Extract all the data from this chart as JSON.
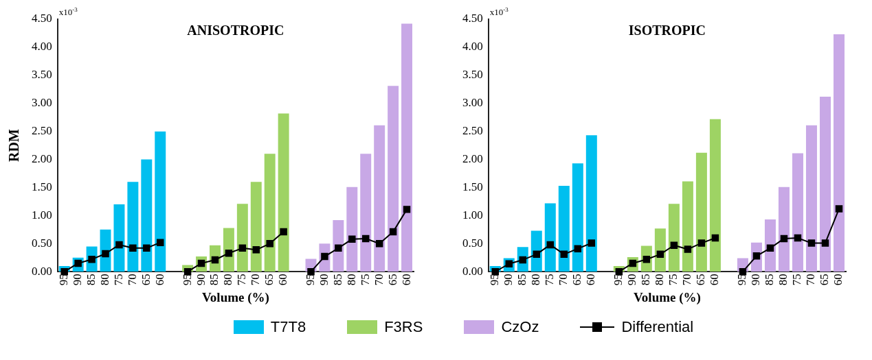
{
  "chart_data": [
    {
      "type": "bar",
      "title": "ANISOTROPIC",
      "xlabel": "Volume (%)",
      "ylabel": "RDM",
      "annotations": [
        "x10$^{-3}$"
      ],
      "categories": [
        "95",
        "90",
        "85",
        "80",
        "75",
        "70",
        "65",
        "60",
        null,
        "95",
        "90",
        "85",
        "80",
        "75",
        "70",
        "65",
        "60",
        null,
        "95",
        "90",
        "85",
        "80",
        "75",
        "70",
        "65",
        "60"
      ],
      "series": [
        {
          "name": "T7T8",
          "color": "#00bfef",
          "values": [
            0.1,
            0.25,
            0.45,
            0.75,
            1.2,
            1.6,
            2.0,
            2.5,
            null,
            null,
            null,
            null,
            null,
            null,
            null,
            null,
            null,
            null,
            null,
            null,
            null,
            null,
            null,
            null,
            null,
            null
          ]
        },
        {
          "name": "F3RS",
          "color": "#9ed364",
          "values": [
            null,
            null,
            null,
            null,
            null,
            null,
            null,
            null,
            null,
            0.12,
            0.27,
            0.47,
            0.78,
            1.21,
            1.6,
            2.1,
            2.82,
            null,
            null,
            null,
            null,
            null,
            null,
            null,
            null,
            null
          ]
        },
        {
          "name": "CzOz",
          "color": "#c8a8e6",
          "values": [
            null,
            null,
            null,
            null,
            null,
            null,
            null,
            null,
            null,
            null,
            null,
            null,
            null,
            null,
            null,
            null,
            null,
            null,
            0.23,
            0.5,
            0.92,
            1.51,
            2.1,
            2.61,
            3.31,
            4.42
          ]
        },
        {
          "name": "Differential",
          "type": "line",
          "color": "#000000",
          "values": [
            0.0,
            0.15,
            0.22,
            0.32,
            0.48,
            0.42,
            0.42,
            0.52,
            null,
            0.0,
            0.15,
            0.21,
            0.33,
            0.42,
            0.39,
            0.5,
            0.71,
            null,
            0.0,
            0.27,
            0.42,
            0.58,
            0.59,
            0.5,
            0.71,
            1.11
          ]
        }
      ],
      "ylim": [
        0,
        4.5
      ],
      "yticks": [
        {
          "value": 0,
          "label": "0.00"
        },
        {
          "value": 0.5,
          "label": "0.50"
        },
        {
          "value": 1,
          "label": "1.00"
        },
        {
          "value": 1.5,
          "label": "1.50"
        },
        {
          "value": 2,
          "label": "2.00"
        },
        {
          "value": 2.5,
          "label": "2.50"
        },
        {
          "value": 3,
          "label": "3.00"
        },
        {
          "value": 3.5,
          "label": "3.50"
        },
        {
          "value": 4,
          "label": "4.00"
        },
        {
          "value": 4.5,
          "label": "4.50"
        }
      ],
      "marker": "square",
      "legend": "bottom"
    },
    {
      "type": "bar",
      "title": "ISOTROPIC",
      "xlabel": "Volume (%)",
      "annotations": [
        "x10$^{-3}$"
      ],
      "categories": [
        "95",
        "90",
        "85",
        "80",
        "75",
        "70",
        "65",
        "60",
        null,
        "95",
        "90",
        "85",
        "80",
        "75",
        "70",
        "65",
        "60",
        null,
        "95",
        "90",
        "85",
        "80",
        "75",
        "70",
        "65",
        "60"
      ],
      "series": [
        {
          "name": "T7T8",
          "color": "#00bfef",
          "values": [
            0.1,
            0.24,
            0.44,
            0.73,
            1.22,
            1.53,
            1.93,
            2.43,
            null,
            null,
            null,
            null,
            null,
            null,
            null,
            null,
            null,
            null,
            null,
            null,
            null,
            null,
            null,
            null,
            null,
            null
          ]
        },
        {
          "name": "F3RS",
          "color": "#9ed364",
          "values": [
            null,
            null,
            null,
            null,
            null,
            null,
            null,
            null,
            null,
            0.1,
            0.26,
            0.46,
            0.77,
            1.21,
            1.61,
            2.12,
            2.72,
            null,
            null,
            null,
            null,
            null,
            null,
            null,
            null,
            null
          ]
        },
        {
          "name": "CzOz",
          "color": "#c8a8e6",
          "values": [
            null,
            null,
            null,
            null,
            null,
            null,
            null,
            null,
            null,
            null,
            null,
            null,
            null,
            null,
            null,
            null,
            null,
            null,
            0.24,
            0.52,
            0.93,
            1.51,
            2.11,
            2.61,
            3.12,
            4.23
          ]
        },
        {
          "name": "Differential",
          "type": "line",
          "color": "#000000",
          "values": [
            0.0,
            0.14,
            0.21,
            0.31,
            0.48,
            0.31,
            0.41,
            0.51,
            null,
            0.0,
            0.15,
            0.22,
            0.31,
            0.47,
            0.4,
            0.51,
            0.6,
            null,
            0.0,
            0.28,
            0.42,
            0.59,
            0.6,
            0.51,
            0.51,
            1.12
          ]
        }
      ],
      "ylim": [
        0,
        4.5
      ],
      "yticks": [
        {
          "value": 0,
          "label": "0.00"
        },
        {
          "value": 0.5,
          "label": "0.50"
        },
        {
          "value": 1,
          "label": "1.00"
        },
        {
          "value": 1.5,
          "label": "1.50"
        },
        {
          "value": 2,
          "label": "2.00"
        },
        {
          "value": 2.5,
          "label": "2.50"
        },
        {
          "value": 3,
          "label": "3.00"
        },
        {
          "value": 3.5,
          "label": "3.50"
        },
        {
          "value": 4,
          "label": "4.00"
        },
        {
          "value": 4.5,
          "label": "4.50"
        }
      ],
      "marker": "square",
      "legend": "bottom"
    }
  ]
}
